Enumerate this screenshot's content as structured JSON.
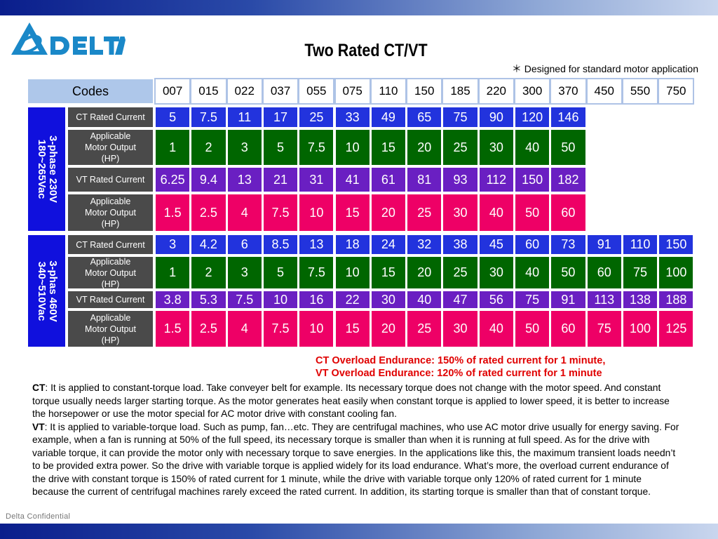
{
  "brand": {
    "name": "DELTA",
    "colors": {
      "logo_blue": "#1a88c8",
      "band_blue": "#1010dd",
      "ct_blue": "#2233dd",
      "green": "#006600",
      "purple": "#6a1fc2",
      "pink": "#ee0066",
      "label_gray": "#4a4a4a",
      "header_blue": "#aec7ea"
    }
  },
  "title": "Two Rated CT/VT",
  "note": "＊ Designed for standard motor application",
  "table": {
    "codes_label": "Codes",
    "codes": [
      "007",
      "015",
      "022",
      "037",
      "055",
      "075",
      "110",
      "150",
      "185",
      "220",
      "300",
      "370",
      "450",
      "550",
      "750"
    ],
    "groups": [
      {
        "band_line1": "3-phase  230V",
        "band_line2": "180~265Vac",
        "rows": [
          {
            "type": "ct",
            "label": "CT Rated Current",
            "values": [
              "5",
              "7.5",
              "11",
              "17",
              "25",
              "33",
              "49",
              "65",
              "75",
              "90",
              "120",
              "146"
            ]
          },
          {
            "type": "app",
            "label_lines": [
              "Applicable",
              "Motor Output",
              "(HP)"
            ],
            "values": [
              "1",
              "2",
              "3",
              "5",
              "7.5",
              "10",
              "15",
              "20",
              "25",
              "30",
              "40",
              "50"
            ]
          },
          {
            "type": "vt",
            "label": "VT Rated Current",
            "values": [
              "6.25",
              "9.4",
              "13",
              "21",
              "31",
              "41",
              "61",
              "81",
              "93",
              "112",
              "150",
              "182"
            ]
          },
          {
            "type": "vth",
            "label_lines": [
              "Applicable",
              "Motor Output",
              "(HP)"
            ],
            "values": [
              "1.5",
              "2.5",
              "4",
              "7.5",
              "10",
              "15",
              "20",
              "25",
              "30",
              "40",
              "50",
              "60"
            ]
          }
        ]
      },
      {
        "band_line1": "3-phas 460V",
        "band_line2": "340~510Vac",
        "rows": [
          {
            "type": "ct",
            "label": "CT Rated Current",
            "values": [
              "3",
              "4.2",
              "6",
              "8.5",
              "13",
              "18",
              "24",
              "32",
              "38",
              "45",
              "60",
              "73",
              "91",
              "110",
              "150"
            ]
          },
          {
            "type": "app",
            "label_lines": [
              "Applicable",
              "Motor Output",
              "(HP)"
            ],
            "values": [
              "1",
              "2",
              "3",
              "5",
              "7.5",
              "10",
              "15",
              "20",
              "25",
              "30",
              "40",
              "50",
              "60",
              "75",
              "100"
            ]
          },
          {
            "type": "vt",
            "label": "VT Rated Current",
            "values": [
              "3.8",
              "5.3",
              "7.5",
              "10",
              "16",
              "22",
              "30",
              "40",
              "47",
              "56",
              "75",
              "91",
              "113",
              "138",
              "188"
            ]
          },
          {
            "type": "vth",
            "label_lines": [
              "Applicable",
              "Motor Output",
              "(HP)"
            ],
            "values": [
              "1.5",
              "2.5",
              "4",
              "7.5",
              "10",
              "15",
              "20",
              "25",
              "30",
              "40",
              "50",
              "60",
              "75",
              "100",
              "125"
            ]
          }
        ]
      }
    ]
  },
  "overload": {
    "line1": "CT Overload Endurance: 150% of rated current for 1 minute,",
    "line2": "VT Overload Endurance: 120% of rated current for 1 minute"
  },
  "body": {
    "ct_term": "CT",
    "ct_text": ": It is applied to constant-torque load. Take conveyer belt for example. Its necessary torque does not change with the motor speed. And constant torque usually needs larger starting torque. As the motor generates heat easily when constant torque is applied to lower speed, it is better to increase the horsepower or use the motor special for AC motor drive with constant cooling fan.",
    "vt_term": "VT",
    "vt_text": ": It is applied to variable-torque load. Such as pump, fan…etc. They are centrifugal machines, who use AC motor drive usually for energy saving. For example, when a fan is running at 50% of the full speed, its necessary torque is smaller than when it is running at full speed. As for the drive with variable torque, it can provide the motor only with necessary torque to save energies. In the applications like this, the maximum transient loads needn’t to be provided extra power. So the drive with variable torque is applied widely for its load endurance. What’s more, the overload current endurance of the drive with constant torque is 150% of rated current for 1 minute, while the drive with variable torque only 120% of rated current for 1 minute because the current of centrifugal machines rarely exceed the rated current. In addition, its starting torque is smaller than that of constant torque."
  },
  "footer": "Delta Confidential"
}
